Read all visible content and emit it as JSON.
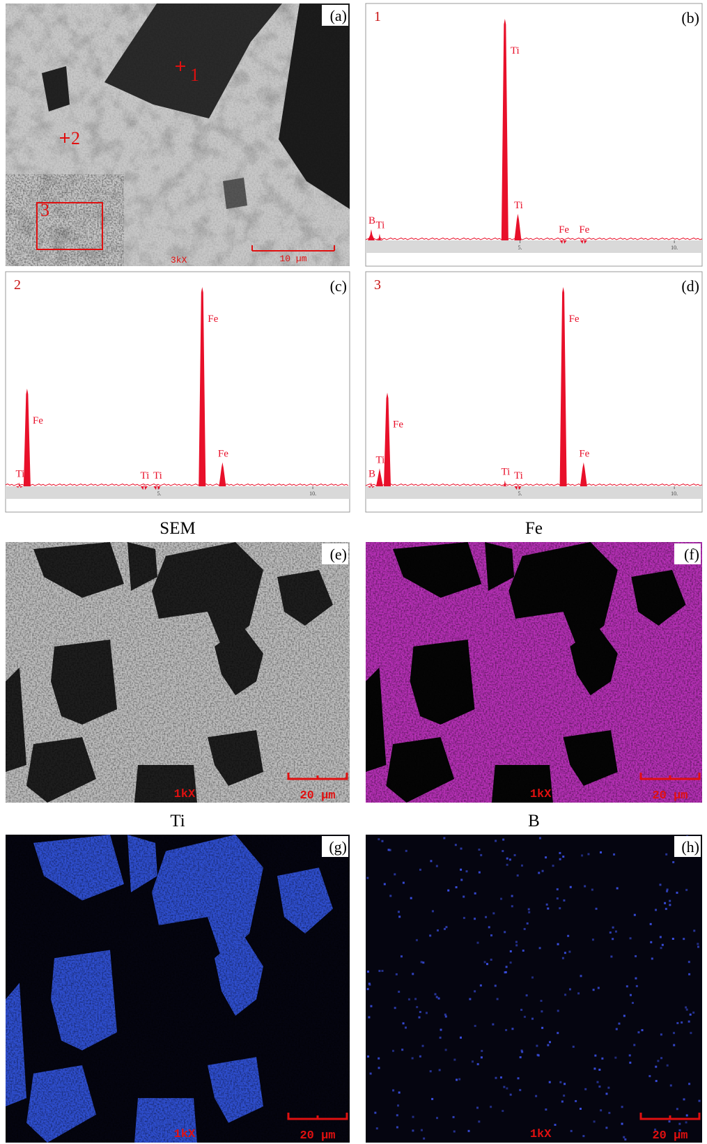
{
  "micrograph": {
    "letter": "(a)",
    "points": [
      "1",
      "2",
      "3"
    ],
    "magnification": "3kX",
    "scale_bar": "10 µm"
  },
  "spectra": [
    {
      "letter": "(b)",
      "point": "1",
      "xlim": [
        0,
        10.9
      ],
      "ylim": [
        0,
        100
      ],
      "xticks": [
        {
          "value": 5,
          "label": "5."
        },
        {
          "value": 10,
          "label": "10."
        }
      ],
      "peaks": [
        {
          "element": "B",
          "energy": 0.18,
          "height": 5
        },
        {
          "element": "Ti",
          "energy": 0.45,
          "height": 3
        },
        {
          "element": "Ti",
          "energy": 4.51,
          "height": 100
        },
        {
          "element": "Ti",
          "energy": 4.93,
          "height": 12
        },
        {
          "element": "Fe",
          "energy": 6.4,
          "height": 1
        },
        {
          "element": "Fe",
          "energy": 7.06,
          "height": 1
        }
      ]
    },
    {
      "letter": "(c)",
      "point": "2",
      "xlim": [
        0,
        11.2
      ],
      "ylim": [
        0,
        100
      ],
      "xticks": [
        {
          "value": 5,
          "label": "5."
        },
        {
          "value": 10,
          "label": "10."
        }
      ],
      "peaks": [
        {
          "element": "Ti",
          "energy": 0.45,
          "height": 2
        },
        {
          "element": "Fe",
          "energy": 0.7,
          "height": 49
        },
        {
          "element": "Ti",
          "energy": 4.51,
          "height": 1
        },
        {
          "element": "Ti",
          "energy": 4.93,
          "height": 1
        },
        {
          "element": "Fe",
          "energy": 6.4,
          "height": 100
        },
        {
          "element": "Fe",
          "energy": 7.06,
          "height": 12
        }
      ]
    },
    {
      "letter": "(d)",
      "point": "3",
      "xlim": [
        0,
        10.9
      ],
      "ylim": [
        0,
        100
      ],
      "xticks": [
        {
          "value": 5,
          "label": "5."
        },
        {
          "value": 10,
          "label": "10."
        }
      ],
      "peaks": [
        {
          "element": "B",
          "energy": 0.18,
          "height": 2
        },
        {
          "element": "Ti",
          "energy": 0.45,
          "height": 9
        },
        {
          "element": "Fe",
          "energy": 0.7,
          "height": 47
        },
        {
          "element": "Ti",
          "energy": 4.51,
          "height": 3
        },
        {
          "element": "Ti",
          "energy": 4.93,
          "height": 1
        },
        {
          "element": "Fe",
          "energy": 6.4,
          "height": 100
        },
        {
          "element": "Fe",
          "energy": 7.06,
          "height": 12
        }
      ]
    }
  ],
  "maps": [
    {
      "title": "SEM",
      "letter": "(e)",
      "magnification": "1kX",
      "scale_bar": "20 µm"
    },
    {
      "title": "Fe",
      "letter": "(f)",
      "magnification": "1kX",
      "scale_bar": "20 µm"
    },
    {
      "title": "Ti",
      "letter": "(g)",
      "magnification": "1kX",
      "scale_bar": "20 µm"
    },
    {
      "title": "B",
      "letter": "(h)",
      "magnification": "1kX",
      "scale_bar": "20 µm"
    }
  ]
}
